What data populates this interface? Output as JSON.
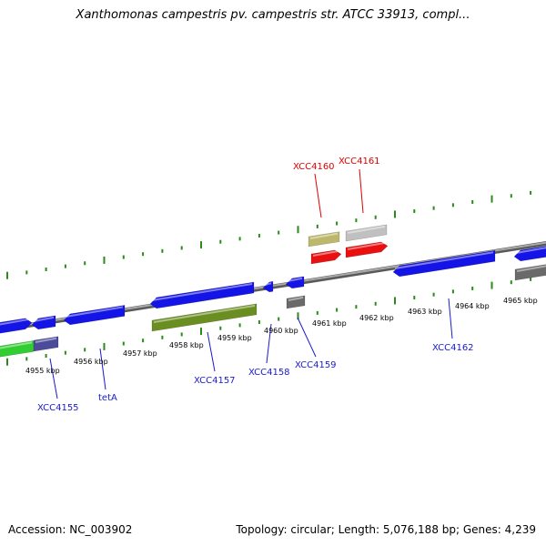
{
  "title": "Xanthomonas campestris pv. campestris str. ATCC 33913, compl...",
  "footer": {
    "accession": "Accession: NC_003902",
    "summary": "Topology: circular; Length: 5,076,188 bp; Genes: 4,239"
  },
  "colors": {
    "backbone": "#8a8a8a",
    "tick": "#2a8a1a",
    "label_default": "#1a1acc",
    "label_highlight": "#dd0000",
    "gene_blue": "#1414e6",
    "gene_red": "#e81010",
    "gene_olive": "#6b8e23",
    "gene_khaki": "#bdb76b",
    "gene_silver": "#c0c0c0",
    "gene_gray": "#6a6a6a",
    "gene_green": "#32cd32",
    "gene_slate": "#4b4b9a"
  },
  "scale_labels": [
    "4955 kbp",
    "4956 kbp",
    "4957 kbp",
    "4958 kbp",
    "4959 kbp",
    "4960 kbp",
    "4961 kbp",
    "4962 kbp",
    "4963 kbp",
    "4964 kbp",
    "4965 kbp"
  ],
  "gene_labels": [
    {
      "id": "XCC4155",
      "text": "XCC4155",
      "highlight": false
    },
    {
      "id": "tetA",
      "text": "tetA",
      "highlight": false
    },
    {
      "id": "XCC4157",
      "text": "XCC4157",
      "highlight": false
    },
    {
      "id": "XCC4158",
      "text": "XCC4158",
      "highlight": false
    },
    {
      "id": "XCC4159",
      "text": "XCC4159",
      "highlight": false
    },
    {
      "id": "XCC4160",
      "text": "XCC4160",
      "highlight": true
    },
    {
      "id": "XCC4161",
      "text": "XCC4161",
      "highlight": true
    },
    {
      "id": "XCC4162",
      "text": "XCC4162",
      "highlight": false
    }
  ]
}
